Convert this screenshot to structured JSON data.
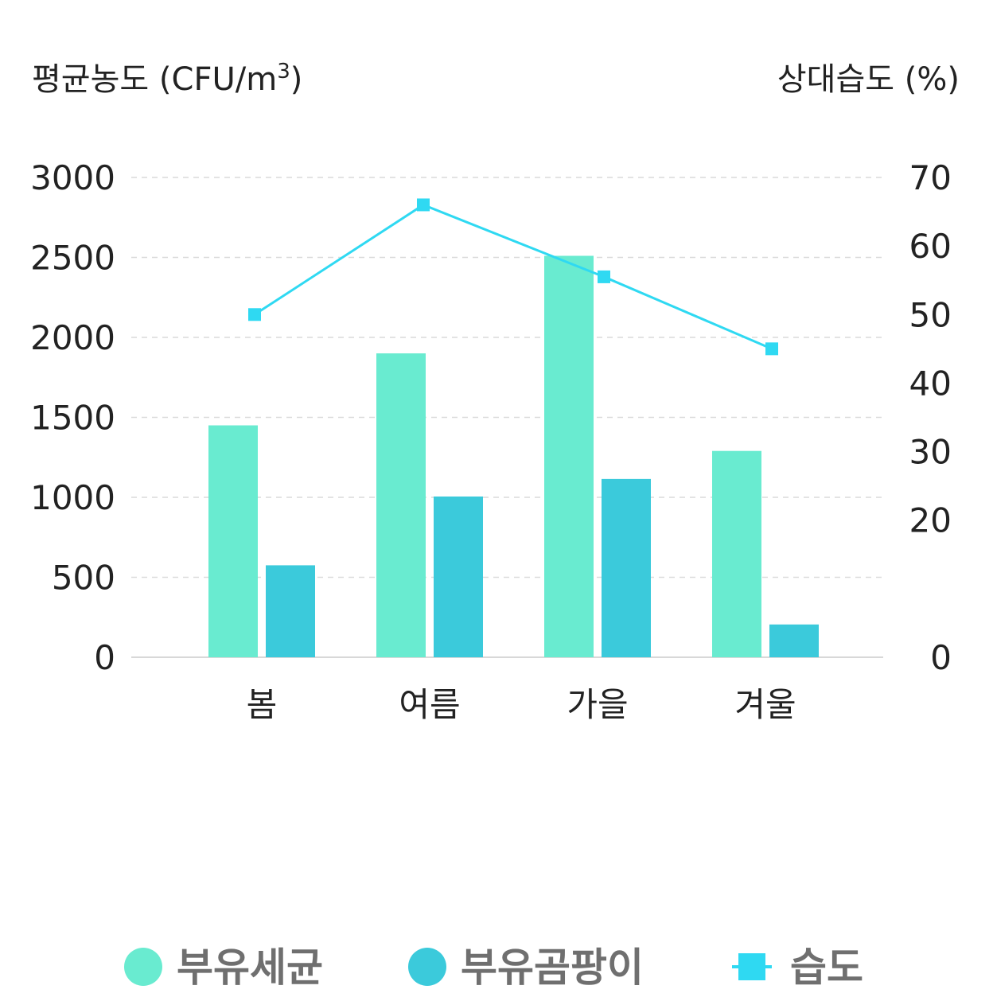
{
  "chart_data": {
    "type": "bar",
    "categories": [
      "봄",
      "여름",
      "가을",
      "겨울"
    ],
    "series": [
      {
        "name": "부유세균",
        "type": "bar",
        "axis": "left",
        "color": "#69ebd0",
        "values": [
          1450,
          1900,
          2510,
          1290
        ]
      },
      {
        "name": "부유곰팡이",
        "type": "bar",
        "axis": "left",
        "color": "#3bcadb",
        "values": [
          575,
          1005,
          1115,
          205
        ]
      },
      {
        "name": "습도",
        "type": "line",
        "axis": "right",
        "color": "#2fd9f2",
        "values": [
          50,
          66,
          55.5,
          45
        ]
      }
    ],
    "ylabel": "평균농도 (CFU/m",
    "ylabel_sup": "3",
    "ylabel_close": ")",
    "y2label": "상대습도 (%)",
    "ylim": [
      0,
      3000
    ],
    "y2lim": [
      0,
      70
    ],
    "yticks": [
      "0",
      "500",
      "1000",
      "1500",
      "2000",
      "2500",
      "3000"
    ],
    "y2ticks": [
      "0",
      "20",
      "30",
      "40",
      "50",
      "60",
      "70"
    ],
    "grid": true,
    "legend_position": "bottom"
  }
}
